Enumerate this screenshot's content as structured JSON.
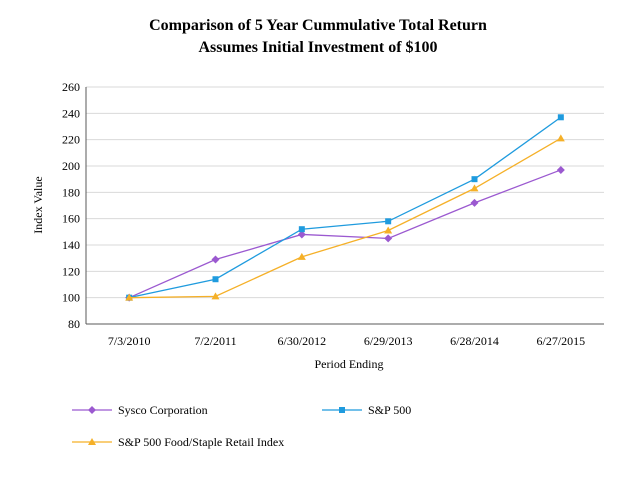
{
  "chart_data": {
    "type": "line",
    "title": "Comparison of 5 Year Cummulative Total Return",
    "subtitle": "Assumes Initial Investment of $100",
    "xlabel": "Period Ending",
    "ylabel": "Index Value",
    "categories": [
      "7/3/2010",
      "7/2/2011",
      "6/30/2012",
      "6/29/2013",
      "6/28/2014",
      "6/27/2015"
    ],
    "ylim": [
      80,
      260
    ],
    "yticks": [
      80,
      100,
      120,
      140,
      160,
      180,
      200,
      220,
      240,
      260
    ],
    "grid": "horizontal",
    "legend_position": "bottom",
    "series": [
      {
        "name": "Sysco Corporation",
        "values": [
          100,
          129,
          148,
          145,
          172,
          197
        ],
        "color": "#9b59d0",
        "marker": "diamond"
      },
      {
        "name": "S&P 500",
        "values": [
          100,
          114,
          152,
          158,
          190,
          237
        ],
        "color": "#1f9bde",
        "marker": "square"
      },
      {
        "name": "S&P 500 Food/Staple Retail Index",
        "values": [
          100,
          101,
          131,
          151,
          183,
          221
        ],
        "color": "#f5b028",
        "marker": "triangle"
      }
    ]
  }
}
